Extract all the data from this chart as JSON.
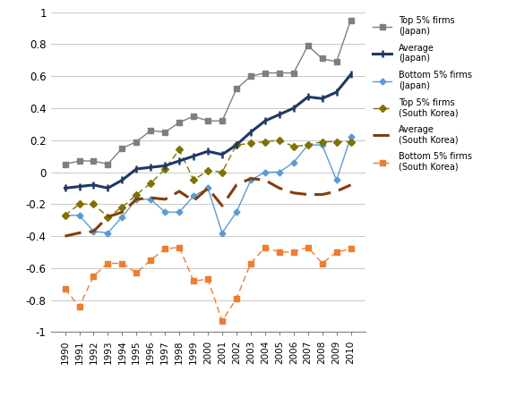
{
  "years": [
    1990,
    1991,
    1992,
    1993,
    1994,
    1995,
    1996,
    1997,
    1998,
    1999,
    2000,
    2001,
    2002,
    2003,
    2004,
    2005,
    2006,
    2007,
    2008,
    2009,
    2010
  ],
  "top5_japan": [
    0.05,
    0.07,
    0.07,
    0.05,
    0.15,
    0.19,
    0.26,
    0.25,
    0.31,
    0.35,
    0.32,
    0.32,
    0.52,
    0.6,
    0.62,
    0.62,
    0.62,
    0.79,
    0.71,
    0.69,
    0.95
  ],
  "avg_japan": [
    -0.1,
    -0.09,
    -0.08,
    -0.1,
    -0.05,
    0.02,
    0.03,
    0.04,
    0.07,
    0.1,
    0.13,
    0.11,
    0.17,
    0.25,
    0.32,
    0.36,
    0.4,
    0.47,
    0.46,
    0.5,
    0.61
  ],
  "bottom5_japan": [
    -0.27,
    -0.27,
    -0.37,
    -0.38,
    -0.28,
    -0.17,
    -0.17,
    -0.25,
    -0.25,
    -0.15,
    -0.1,
    -0.38,
    -0.25,
    -0.05,
    0.0,
    0.0,
    0.06,
    0.17,
    0.17,
    -0.05,
    0.22
  ],
  "top5_korea": [
    -0.27,
    -0.2,
    -0.2,
    -0.28,
    -0.22,
    -0.14,
    -0.07,
    0.02,
    0.14,
    -0.05,
    0.01,
    0.0,
    0.17,
    0.18,
    0.19,
    0.2,
    0.16,
    0.17,
    0.19,
    0.19,
    0.19
  ],
  "avg_korea": [
    -0.4,
    -0.38,
    -0.37,
    -0.28,
    -0.25,
    -0.17,
    -0.16,
    -0.17,
    -0.12,
    -0.18,
    -0.1,
    -0.21,
    -0.08,
    -0.04,
    -0.05,
    -0.1,
    -0.13,
    -0.14,
    -0.14,
    -0.12,
    -0.08
  ],
  "bottom5_korea": [
    -0.73,
    -0.84,
    -0.65,
    -0.57,
    -0.57,
    -0.63,
    -0.55,
    -0.48,
    -0.47,
    -0.68,
    -0.67,
    -0.93,
    -0.79,
    -0.57,
    -0.47,
    -0.5,
    -0.5,
    -0.47,
    -0.57,
    -0.5,
    -0.48
  ],
  "colors": {
    "top5_japan": "#7f7f7f",
    "avg_japan": "#203864",
    "bottom5_japan": "#5b9bd5",
    "top5_korea": "#7f7200",
    "avg_korea": "#843c0c",
    "bottom5_korea": "#ed7d31"
  },
  "ylim": [
    -1.0,
    1.0
  ],
  "yticks": [
    -1.0,
    -0.8,
    -0.6,
    -0.4,
    -0.2,
    0.0,
    0.2,
    0.4,
    0.6,
    0.8,
    1.0
  ],
  "grid_color": "#c8c8c8",
  "legend_labels": [
    "Top 5% firms\n(Japan)",
    "Average\n(Japan)",
    "Bottom 5% firms\n(Japan)",
    "Top 5% firms\n(South Korea)",
    "Average\n(South Korea)",
    "Bottom 5% firms\n(South Korea)"
  ]
}
